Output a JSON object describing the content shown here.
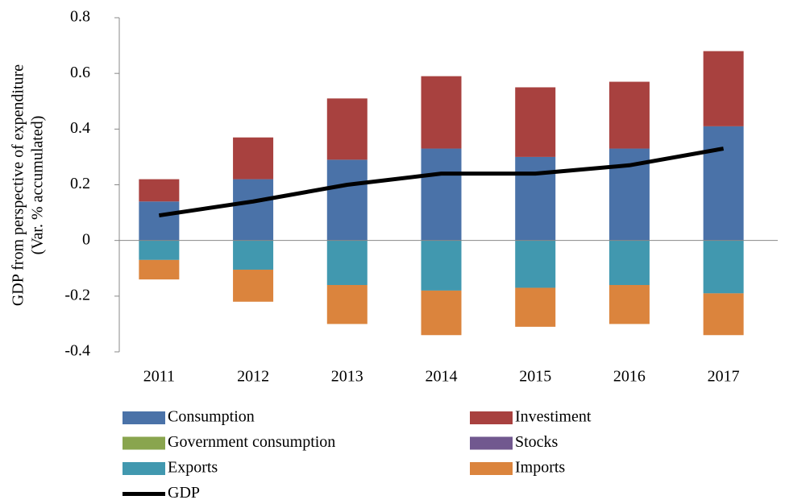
{
  "chart_data": {
    "type": "bar",
    "stacked": true,
    "ylabel": [
      "GDP  from perspective of expenditure",
      "(Var.  % accumulated)"
    ],
    "categories": [
      "2011",
      "2012",
      "2013",
      "2014",
      "2015",
      "2016",
      "2017"
    ],
    "series": [
      {
        "name": "Consumption",
        "color": "#4a72a8",
        "values": [
          0.14,
          0.22,
          0.29,
          0.33,
          0.3,
          0.33,
          0.41
        ]
      },
      {
        "name": "Investiment",
        "color": "#a8413f",
        "values": [
          0.08,
          0.15,
          0.22,
          0.26,
          0.25,
          0.24,
          0.27
        ]
      },
      {
        "name": "Government consumption",
        "color": "#89a54e",
        "values": [
          0,
          0,
          0,
          0,
          0,
          0,
          0
        ]
      },
      {
        "name": "Stocks",
        "color": "#71588f",
        "values": [
          0,
          0,
          0,
          0,
          0,
          0,
          0
        ]
      },
      {
        "name": "Exports",
        "color": "#4198af",
        "values": [
          -0.07,
          -0.105,
          -0.16,
          -0.18,
          -0.17,
          -0.16,
          -0.19
        ]
      },
      {
        "name": "Imports",
        "color": "#db843d",
        "values": [
          -0.07,
          -0.115,
          -0.14,
          -0.16,
          -0.14,
          -0.14,
          -0.15
        ]
      },
      {
        "name": "GDP",
        "type": "line",
        "color": "#000000",
        "values": [
          0.09,
          0.14,
          0.2,
          0.24,
          0.24,
          0.27,
          0.33
        ]
      }
    ],
    "ylim": [
      -0.4,
      0.8
    ],
    "yticks": [
      -0.4,
      -0.2,
      0,
      0.2,
      0.4,
      0.6,
      0.8
    ],
    "grid": false,
    "legend": "bottom"
  }
}
